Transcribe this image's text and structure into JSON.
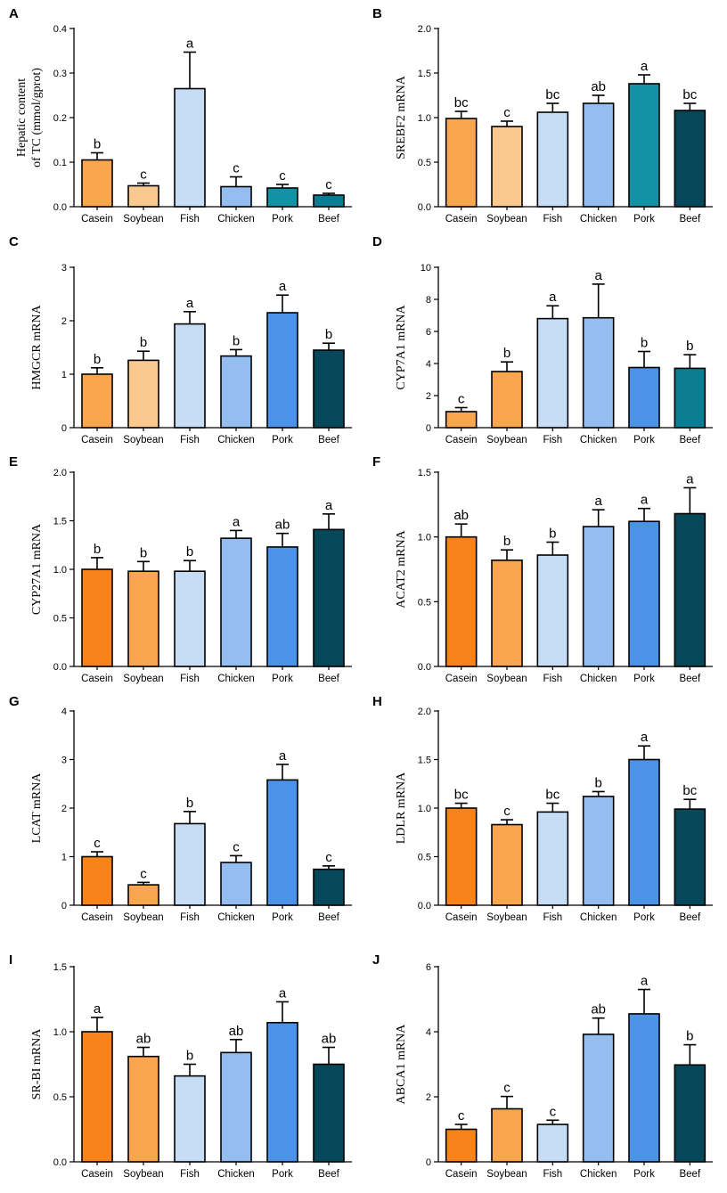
{
  "colors": {
    "casein_dark": "#f7831a",
    "casein_light": "#f9a64f",
    "soybean": "#fbc88f",
    "fish": "#c7dcf5",
    "chicken": "#94bdf0",
    "pork_blue": "#4b93e8",
    "pork_teal": "#1392a6",
    "beef": "#07475a",
    "beef_teal": "#0b7d92"
  },
  "chart_data": [
    {
      "panel": "A",
      "type": "bar",
      "ylabel": [
        "Hepatic content",
        "of  TC (mmol/gprot)"
      ],
      "ylim": [
        0,
        0.4
      ],
      "yticks": [
        "0.0",
        "0.1",
        "0.2",
        "0.3",
        "0.4"
      ],
      "categories": [
        "Casein",
        "Soybean",
        "Fish",
        "Chicken",
        "Pork",
        "Beef"
      ],
      "values": [
        0.105,
        0.047,
        0.265,
        0.045,
        0.042,
        0.026
      ],
      "errors": [
        0.016,
        0.006,
        0.082,
        0.022,
        0.008,
        0.004
      ],
      "labels": [
        "b",
        "c",
        "a",
        "c",
        "c",
        "c"
      ],
      "colors": [
        "casein_light",
        "soybean",
        "fish",
        "chicken",
        "pork_teal",
        "beef_teal"
      ]
    },
    {
      "panel": "B",
      "type": "bar",
      "ylabel": [
        "SREBF2 mRNA"
      ],
      "ylim": [
        0,
        2.0
      ],
      "yticks": [
        "0.0",
        "0.5",
        "1.0",
        "1.5",
        "2.0"
      ],
      "categories": [
        "Casein",
        "Soybean",
        "Fish",
        "Chicken",
        "Pork",
        "Beef"
      ],
      "values": [
        0.99,
        0.9,
        1.06,
        1.16,
        1.38,
        1.08
      ],
      "errors": [
        0.08,
        0.06,
        0.1,
        0.09,
        0.1,
        0.08
      ],
      "labels": [
        "bc",
        "c",
        "bc",
        "ab",
        "a",
        "bc"
      ],
      "colors": [
        "casein_light",
        "soybean",
        "fish",
        "chicken",
        "pork_teal",
        "beef"
      ]
    },
    {
      "panel": "C",
      "type": "bar",
      "ylabel": [
        "HMGCR mRNA"
      ],
      "ylim": [
        0,
        3
      ],
      "yticks": [
        "0",
        "1",
        "2",
        "3"
      ],
      "categories": [
        "Casein",
        "Soybean",
        "Fish",
        "Chicken",
        "Pork",
        "Beef"
      ],
      "values": [
        1.0,
        1.26,
        1.94,
        1.34,
        2.15,
        1.45
      ],
      "errors": [
        0.12,
        0.17,
        0.23,
        0.12,
        0.33,
        0.13
      ],
      "labels": [
        "b",
        "b",
        "a",
        "b",
        "a",
        "b"
      ],
      "colors": [
        "casein_light",
        "soybean",
        "fish",
        "chicken",
        "pork_blue",
        "beef"
      ]
    },
    {
      "panel": "D",
      "type": "bar",
      "ylabel": [
        "CYP7A1 mRNA"
      ],
      "ylim": [
        0,
        10
      ],
      "yticks": [
        "0",
        "2",
        "4",
        "6",
        "8",
        "10"
      ],
      "categories": [
        "Casein",
        "Soybean",
        "Fish",
        "Chicken",
        "Pork",
        "Beef"
      ],
      "values": [
        1.0,
        3.5,
        6.8,
        6.85,
        3.75,
        3.7
      ],
      "errors": [
        0.25,
        0.6,
        0.8,
        2.1,
        1.0,
        0.85
      ],
      "labels": [
        "c",
        "b",
        "a",
        "a",
        "b",
        "b"
      ],
      "colors": [
        "casein_light",
        "casein_light",
        "fish",
        "chicken",
        "pork_blue",
        "beef_teal"
      ]
    },
    {
      "panel": "E",
      "type": "bar",
      "ylabel": [
        "CYP27A1 mRNA"
      ],
      "ylim": [
        0,
        2.0
      ],
      "yticks": [
        "0.0",
        "0.5",
        "1.0",
        "1.5",
        "2.0"
      ],
      "categories": [
        "Casein",
        "Soybean",
        "Fish",
        "Chicken",
        "Pork",
        "Beef"
      ],
      "values": [
        1.0,
        0.98,
        0.98,
        1.32,
        1.23,
        1.41
      ],
      "errors": [
        0.12,
        0.1,
        0.11,
        0.08,
        0.14,
        0.16
      ],
      "labels": [
        "b",
        "b",
        "b",
        "a",
        "ab",
        "a"
      ],
      "colors": [
        "casein_dark",
        "casein_light",
        "fish",
        "chicken",
        "pork_blue",
        "beef"
      ]
    },
    {
      "panel": "F",
      "type": "bar",
      "ylabel": [
        "ACAT2 mRNA"
      ],
      "ylim": [
        0,
        1.5
      ],
      "yticks": [
        "0.0",
        "0.5",
        "1.0",
        "1.5"
      ],
      "categories": [
        "Casein",
        "Soybean",
        "Fish",
        "Chicken",
        "Pork",
        "Beef"
      ],
      "values": [
        1.0,
        0.82,
        0.86,
        1.08,
        1.12,
        1.18
      ],
      "errors": [
        0.1,
        0.08,
        0.1,
        0.13,
        0.1,
        0.2
      ],
      "labels": [
        "ab",
        "b",
        "b",
        "a",
        "a",
        "a"
      ],
      "colors": [
        "casein_dark",
        "casein_light",
        "fish",
        "chicken",
        "pork_blue",
        "beef"
      ]
    },
    {
      "panel": "G",
      "type": "bar",
      "ylabel": [
        "LCAT mRNA"
      ],
      "ylim": [
        0,
        4
      ],
      "yticks": [
        "0",
        "1",
        "2",
        "3",
        "4"
      ],
      "categories": [
        "Casein",
        "Soybean",
        "Fish",
        "Chicken",
        "Pork",
        "Beef"
      ],
      "values": [
        1.0,
        0.42,
        1.68,
        0.88,
        2.58,
        0.74
      ],
      "errors": [
        0.1,
        0.05,
        0.25,
        0.14,
        0.32,
        0.07
      ],
      "labels": [
        "c",
        "c",
        "b",
        "c",
        "a",
        "c"
      ],
      "colors": [
        "casein_dark",
        "casein_light",
        "fish",
        "chicken",
        "pork_blue",
        "beef"
      ]
    },
    {
      "panel": "H",
      "type": "bar",
      "ylabel": [
        "LDLR mRNA"
      ],
      "ylim": [
        0,
        2.0
      ],
      "yticks": [
        "0.0",
        "0.5",
        "1.0",
        "1.5",
        "2.0"
      ],
      "categories": [
        "Casein",
        "Soybean",
        "Fish",
        "Chicken",
        "Pork",
        "Beef"
      ],
      "values": [
        1.0,
        0.83,
        0.96,
        1.12,
        1.5,
        0.99
      ],
      "errors": [
        0.05,
        0.05,
        0.09,
        0.05,
        0.14,
        0.1
      ],
      "labels": [
        "bc",
        "c",
        "bc",
        "b",
        "a",
        "bc"
      ],
      "colors": [
        "casein_dark",
        "casein_light",
        "fish",
        "chicken",
        "pork_blue",
        "beef"
      ]
    },
    {
      "panel": "I",
      "type": "bar",
      "ylabel": [
        "SR-BI mRNA"
      ],
      "ylim": [
        0,
        1.5
      ],
      "yticks": [
        "0.0",
        "0.5",
        "1.0",
        "1.5"
      ],
      "categories": [
        "Casein",
        "Soybean",
        "Fish",
        "Chicken",
        "Pork",
        "Beef"
      ],
      "values": [
        1.0,
        0.81,
        0.66,
        0.84,
        1.07,
        0.75
      ],
      "errors": [
        0.11,
        0.07,
        0.09,
        0.1,
        0.16,
        0.13
      ],
      "labels": [
        "a",
        "ab",
        "b",
        "ab",
        "a",
        "ab"
      ],
      "colors": [
        "casein_dark",
        "casein_light",
        "fish",
        "chicken",
        "pork_blue",
        "beef"
      ]
    },
    {
      "panel": "J",
      "type": "bar",
      "ylabel": [
        "ABCA1 mRNA"
      ],
      "ylim": [
        0,
        6
      ],
      "yticks": [
        "0",
        "2",
        "4",
        "6"
      ],
      "categories": [
        "Casein",
        "Soybean",
        "Fish",
        "Chicken",
        "Pork",
        "Beef"
      ],
      "values": [
        1.0,
        1.63,
        1.15,
        3.92,
        4.55,
        2.98
      ],
      "errors": [
        0.15,
        0.38,
        0.13,
        0.5,
        0.75,
        0.62
      ],
      "labels": [
        "c",
        "c",
        "c",
        "ab",
        "a",
        "b"
      ],
      "colors": [
        "casein_dark",
        "casein_light",
        "fish",
        "chicken",
        "pork_blue",
        "beef"
      ]
    }
  ]
}
